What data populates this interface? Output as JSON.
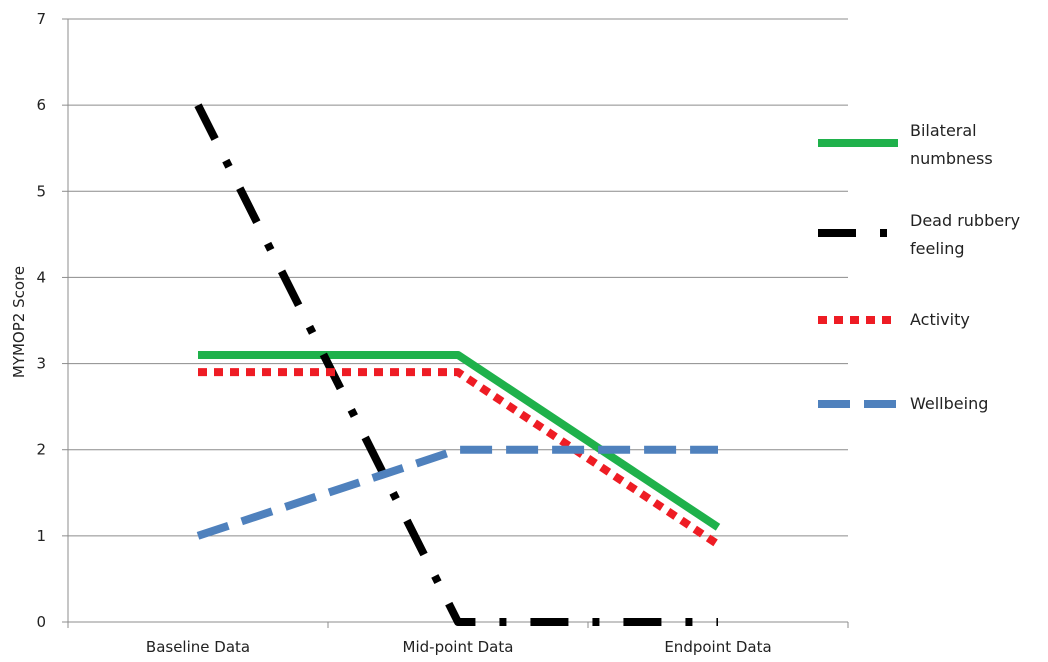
{
  "chart_data": {
    "type": "line",
    "categories": [
      "Baseline Data",
      "Mid-point Data",
      "Endpoint Data"
    ],
    "ylabel": "MYMOP2 Score",
    "xlabel": "",
    "ylim": [
      0,
      7
    ],
    "yticks": [
      0,
      1,
      2,
      3,
      4,
      5,
      6,
      7
    ],
    "grid": true,
    "legend": "right",
    "series": [
      {
        "name": "Bilateral numbness",
        "legend_lines": [
          "Bilateral",
          "numbness"
        ],
        "values": [
          3.1,
          3.1,
          1.1
        ],
        "color": "#1fb14b",
        "style": "solid"
      },
      {
        "name": "Dead rubbery feeling",
        "legend_lines": [
          "Dead rubbery",
          "feeling"
        ],
        "values": [
          6.0,
          0.0,
          0.0
        ],
        "color": "#000000",
        "style": "dash-dot"
      },
      {
        "name": "Activity",
        "legend_lines": [
          "Activity"
        ],
        "values": [
          2.9,
          2.9,
          0.9
        ],
        "color": "#ee1c24",
        "style": "dotted"
      },
      {
        "name": "Wellbeing",
        "legend_lines": [
          "Wellbeing"
        ],
        "values": [
          1.0,
          2.0,
          2.0
        ],
        "color": "#4f81bd",
        "style": "dashed"
      }
    ]
  }
}
